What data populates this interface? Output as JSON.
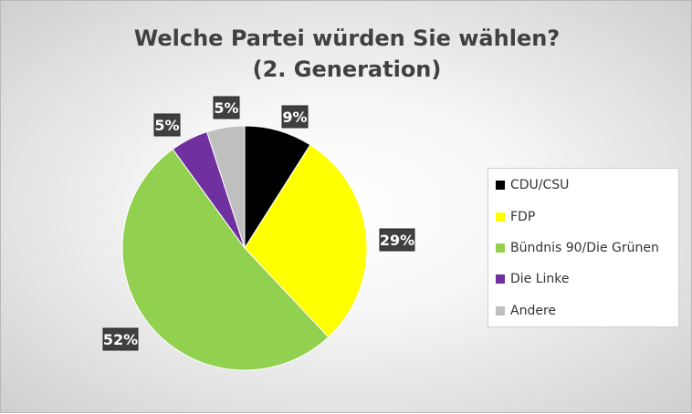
{
  "chart_data": {
    "type": "pie",
    "title_lines": [
      "Welche Partei würden Sie wählen?",
      "(2. Generation)"
    ],
    "categories": [
      "CDU/CSU",
      "FDP",
      "Bündnis 90/Die Grünen",
      "Die Linke",
      "Andere"
    ],
    "values": [
      9,
      29,
      52,
      5,
      5
    ],
    "labels": [
      "9%",
      "29%",
      "52%",
      "5%",
      "5%"
    ],
    "colors": [
      "#000000",
      "#ffff00",
      "#92d050",
      "#7030a0",
      "#bfbfbf"
    ],
    "start_angle": "12 o'clock",
    "direction": "clockwise",
    "legend_position": "right"
  }
}
